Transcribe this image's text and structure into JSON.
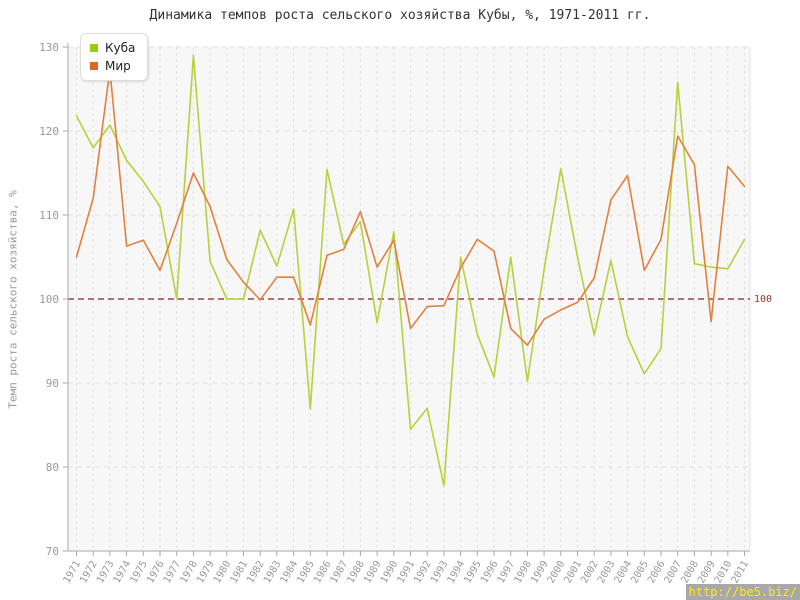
{
  "chart": {
    "title": "Динамика темпов роста сельского хозяйства Кубы, %, 1971-2011 гг.",
    "y_axis_title": "Темп роста сельского хозяйства, %",
    "reference_line_label": "100",
    "watermark": "http://be5.biz/",
    "colors": {
      "cuba_line": "#b5d23c",
      "cuba_marker": "#99cc11",
      "world_line": "#e2813e",
      "world_marker": "#dd6622",
      "reference_line": "#8b2020",
      "reference_label": "#993333",
      "grid": "#e2e2e2",
      "axis": "#aaaaaa",
      "tick_label": "#999999",
      "plot_background": "#f7f7f7",
      "watermark_bg": "#a8a8a8",
      "watermark_text": "#ffee00"
    },
    "chart_data": {
      "type": "line",
      "x": [
        1971,
        1972,
        1973,
        1974,
        1975,
        1976,
        1977,
        1978,
        1979,
        1980,
        1981,
        1982,
        1983,
        1984,
        1985,
        1986,
        1987,
        1988,
        1989,
        1990,
        1991,
        1992,
        1993,
        1994,
        1995,
        1996,
        1997,
        1998,
        1999,
        2000,
        2001,
        2002,
        2003,
        2004,
        2005,
        2006,
        2007,
        2008,
        2009,
        2010,
        2011
      ],
      "series": [
        {
          "name": "Куба",
          "values": [
            121.8,
            118.0,
            120.7,
            116.5,
            114.0,
            111.0,
            100.0,
            129.0,
            104.5,
            100.0,
            100.0,
            108.2,
            103.9,
            110.7,
            86.9,
            115.4,
            106.5,
            109.2,
            97.2,
            108.0,
            84.5,
            87.0,
            77.8,
            105.0,
            95.8,
            90.7,
            105.0,
            90.2,
            103.5,
            115.5,
            105.0,
            95.7,
            104.6,
            95.5,
            91.1,
            94.1,
            125.8,
            104.2,
            103.8,
            103.6,
            107.1
          ]
        },
        {
          "name": "Мир",
          "values": [
            105.0,
            112.0,
            127.3,
            106.3,
            107.0,
            103.4,
            109.0,
            115.0,
            111.0,
            104.7,
            102.0,
            99.9,
            102.6,
            102.6,
            96.9,
            105.2,
            105.9,
            110.4,
            103.8,
            107.0,
            96.5,
            99.1,
            99.2,
            103.7,
            107.1,
            105.7,
            96.5,
            94.5,
            97.6,
            98.7,
            99.6,
            102.5,
            111.8,
            114.7,
            103.4,
            107.1,
            119.4,
            116.0,
            97.3,
            115.8,
            113.4
          ]
        }
      ],
      "ylim": [
        70,
        130
      ],
      "y_ticks": [
        70,
        80,
        90,
        100,
        110,
        120,
        130
      ],
      "reference_line": 100,
      "grid": true,
      "legend_position": "top-left"
    }
  }
}
